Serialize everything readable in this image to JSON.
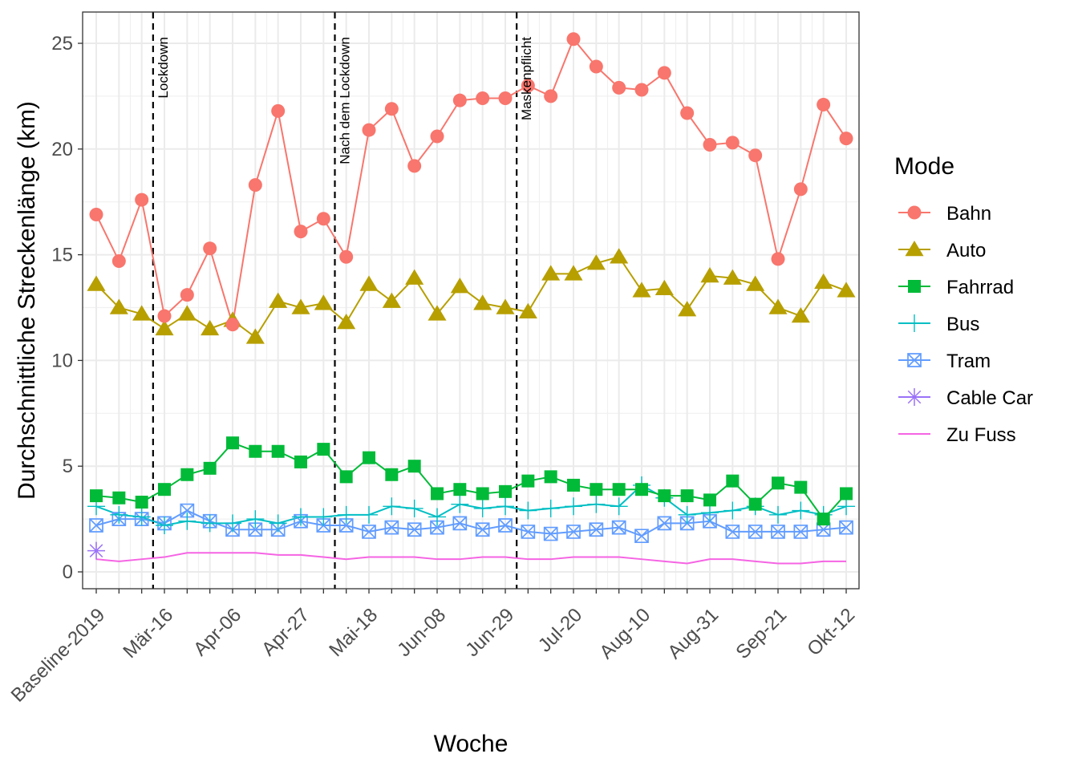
{
  "chart_data": {
    "type": "line",
    "xlabel": "Woche",
    "ylabel": "Durchschnittliche Streckenlänge (km)",
    "ylim": [
      -0.8,
      26.2
    ],
    "yticks": [
      0,
      5,
      10,
      15,
      20,
      25
    ],
    "x_labeled_ticks": [
      {
        "index": 0,
        "label": "Baseline-2019"
      },
      {
        "index": 3,
        "label": "Mär-16"
      },
      {
        "index": 6,
        "label": "Apr-06"
      },
      {
        "index": 9,
        "label": "Apr-27"
      },
      {
        "index": 12,
        "label": "Mai-18"
      },
      {
        "index": 15,
        "label": "Jun-08"
      },
      {
        "index": 18,
        "label": "Jun-29"
      },
      {
        "index": 21,
        "label": "Jul-20"
      },
      {
        "index": 24,
        "label": "Aug-10"
      },
      {
        "index": 27,
        "label": "Aug-31"
      },
      {
        "index": 30,
        "label": "Sep-21"
      },
      {
        "index": 33,
        "label": "Okt-12"
      }
    ],
    "n_points": 34,
    "grid": true,
    "legend_position": "right",
    "legend_title": "Mode",
    "annotations": [
      {
        "label": "Lockdown",
        "x_index": 2.5
      },
      {
        "label": "Nach dem Lockdown",
        "x_index": 10.5
      },
      {
        "label": "Maskenpflicht",
        "x_index": 18.5
      }
    ],
    "series": [
      {
        "name": "Bahn",
        "color": "#F8766D",
        "marker": "circle",
        "values": [
          16.9,
          14.7,
          17.6,
          12.1,
          13.1,
          15.3,
          11.7,
          18.3,
          21.8,
          16.1,
          16.7,
          14.9,
          20.9,
          21.9,
          19.2,
          20.6,
          22.3,
          22.4,
          22.4,
          23.0,
          22.5,
          25.2,
          23.9,
          22.9,
          22.8,
          23.6,
          21.7,
          20.2,
          20.3,
          19.7,
          14.8,
          18.1,
          22.1,
          20.5
        ]
      },
      {
        "name": "Auto",
        "color": "#B79F00",
        "marker": "triangle",
        "values": [
          13.6,
          12.5,
          12.2,
          11.5,
          12.2,
          11.5,
          11.9,
          11.1,
          12.8,
          12.5,
          12.7,
          11.8,
          13.6,
          12.8,
          13.9,
          12.2,
          13.5,
          12.7,
          12.5,
          12.3,
          14.1,
          14.1,
          14.6,
          14.9,
          13.3,
          13.4,
          12.4,
          14.0,
          13.9,
          13.6,
          12.5,
          12.1,
          13.7,
          13.3
        ]
      },
      {
        "name": "Fahrrad",
        "color": "#00BA38",
        "marker": "square",
        "values": [
          3.6,
          3.5,
          3.3,
          3.9,
          4.6,
          4.9,
          6.1,
          5.7,
          5.7,
          5.2,
          5.8,
          4.5,
          5.4,
          4.6,
          5.0,
          3.7,
          3.9,
          3.7,
          3.8,
          4.3,
          4.5,
          4.1,
          3.9,
          3.9,
          3.9,
          3.6,
          3.6,
          3.4,
          4.3,
          3.2,
          4.2,
          4.0,
          2.5,
          3.7
        ]
      },
      {
        "name": "Bus",
        "color": "#00BFC4",
        "marker": "plus",
        "values": [
          3.1,
          2.7,
          2.6,
          2.2,
          2.4,
          2.3,
          2.3,
          2.5,
          2.3,
          2.6,
          2.6,
          2.7,
          2.7,
          3.1,
          3.0,
          2.6,
          3.2,
          3.0,
          3.1,
          2.9,
          3.0,
          3.1,
          3.2,
          3.1,
          4.1,
          3.5,
          2.7,
          2.8,
          2.9,
          3.1,
          2.7,
          2.9,
          2.7,
          3.1
        ]
      },
      {
        "name": "Tram",
        "color": "#619CFF",
        "marker": "square-x",
        "values": [
          2.2,
          2.5,
          2.5,
          2.3,
          2.9,
          2.4,
          2.0,
          2.0,
          2.0,
          2.4,
          2.2,
          2.2,
          1.9,
          2.1,
          2.0,
          2.1,
          2.3,
          2.0,
          2.2,
          1.9,
          1.8,
          1.9,
          2.0,
          2.1,
          1.7,
          2.3,
          2.3,
          2.4,
          1.9,
          1.9,
          1.9,
          1.9,
          2.0,
          2.1
        ]
      },
      {
        "name": "Cable Car",
        "color": "#9B72F8",
        "marker": "asterisk",
        "values": [
          1.0
        ]
      },
      {
        "name": "Zu Fuss",
        "color": "#F564E3",
        "marker": "none",
        "values": [
          0.6,
          0.5,
          0.6,
          0.7,
          0.9,
          0.9,
          0.9,
          0.9,
          0.8,
          0.8,
          0.7,
          0.6,
          0.7,
          0.7,
          0.7,
          0.6,
          0.6,
          0.7,
          0.7,
          0.6,
          0.6,
          0.7,
          0.7,
          0.7,
          0.6,
          0.5,
          0.4,
          0.6,
          0.6,
          0.5,
          0.4,
          0.4,
          0.5,
          0.5
        ]
      }
    ]
  }
}
